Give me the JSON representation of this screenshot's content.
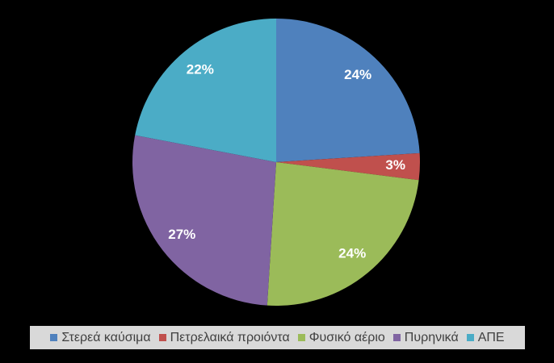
{
  "chart_data": {
    "type": "pie",
    "categories": [
      "Στερεά καύσιμα",
      "Πετρελαικά προιόντα",
      "Φυσικό αέριο",
      "Πυρηνικά",
      "ΑΠΕ"
    ],
    "values": [
      24,
      3,
      24,
      27,
      22
    ],
    "value_labels": [
      "24%",
      "3%",
      "24%",
      "27%",
      "22%"
    ],
    "colors": [
      "#4f81bd",
      "#c0504d",
      "#9bbb59",
      "#8064a2",
      "#4bacc6"
    ],
    "legend": "bottom"
  }
}
